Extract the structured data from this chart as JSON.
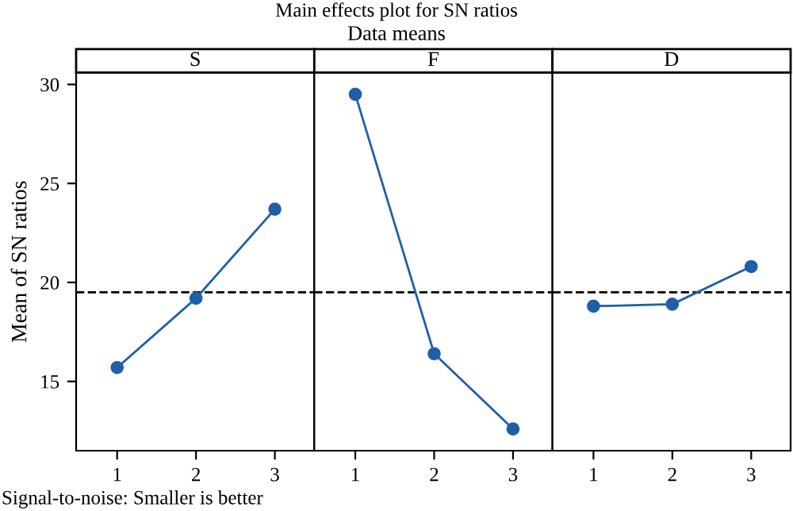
{
  "chart_data": [
    {
      "type": "line",
      "title": "S",
      "ylabel": "Mean of SN ratios",
      "annotations": [
        "Main effects plot for SN ratios",
        "Data means",
        "Signal-to-noise: Smaller is better"
      ],
      "x": [
        1,
        2,
        3
      ],
      "xlim": [
        0.48,
        3.5
      ],
      "xticks": [
        1,
        2,
        3
      ],
      "ylim": [
        11.5,
        30.6
      ],
      "yticks": [
        15,
        20,
        25,
        30
      ],
      "marker": "circle",
      "line_style": "solid",
      "series": [
        {
          "color": "#1f5fa8",
          "values": [
            15.7,
            19.2,
            23.7
          ]
        }
      ],
      "ref_lines": [
        {
          "axis": "y",
          "value": 19.5,
          "color": "#000000",
          "line_style": "dashed"
        }
      ]
    },
    {
      "type": "line",
      "title": "F",
      "x": [
        1,
        2,
        3
      ],
      "xlim": [
        0.48,
        3.5
      ],
      "xticks": [
        1,
        2,
        3
      ],
      "ylim": [
        11.5,
        30.6
      ],
      "yticks": [
        15,
        20,
        25,
        30
      ],
      "tick_labels": "x",
      "marker": "circle",
      "line_style": "solid",
      "series": [
        {
          "color": "#1f5fa8",
          "values": [
            29.5,
            16.4,
            12.6
          ]
        }
      ],
      "ref_lines": [
        {
          "axis": "y",
          "value": 19.5,
          "color": "#000000",
          "line_style": "dashed"
        }
      ]
    },
    {
      "type": "line",
      "title": "D",
      "x": [
        1,
        2,
        3
      ],
      "xlim": [
        0.48,
        3.5
      ],
      "xticks": [
        1,
        2,
        3
      ],
      "ylim": [
        11.5,
        30.6
      ],
      "yticks": [
        15,
        20,
        25,
        30
      ],
      "tick_labels": "x",
      "marker": "circle",
      "line_style": "solid",
      "series": [
        {
          "color": "#1f5fa8",
          "values": [
            18.8,
            18.9,
            20.8
          ]
        }
      ],
      "ref_lines": [
        {
          "axis": "y",
          "value": 19.5,
          "color": "#000000",
          "line_style": "dashed"
        }
      ]
    }
  ]
}
